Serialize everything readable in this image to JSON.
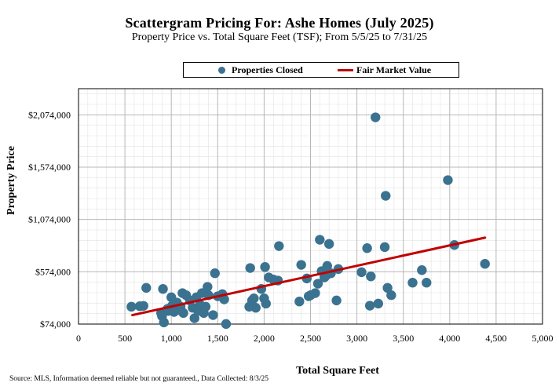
{
  "chart_data": {
    "type": "scatter",
    "title": "Scattergram Pricing For: Ashe Homes (July 2025)",
    "subtitle": "Property Price vs. Total Square Feet (TSF); From 5/5/25 to 7/31/25",
    "xlabel": "Total Square Feet",
    "ylabel": "Property Price",
    "xlim": [
      0,
      5000
    ],
    "ylim": [
      74000,
      2324000
    ],
    "x_ticks": [
      0,
      500,
      1000,
      1500,
      2000,
      2500,
      3000,
      3500,
      4000,
      4500,
      5000
    ],
    "x_tick_labels": [
      "0",
      "500",
      "1,000",
      "1,500",
      "2,000",
      "2,500",
      "3,000",
      "3,500",
      "4,000",
      "4,500",
      "5,000"
    ],
    "y_ticks": [
      74000,
      574000,
      1074000,
      1574000,
      2074000
    ],
    "y_tick_labels": [
      "$74,000",
      "$574,000",
      "$1,074,000",
      "$1,574,000",
      "$2,074,000"
    ],
    "grid": true,
    "legend": {
      "position": "top",
      "entries": [
        "Properties Closed",
        "Fair Market Value"
      ]
    },
    "series": [
      {
        "name": "Properties Closed",
        "kind": "scatter",
        "color": "#3a7290",
        "points": [
          [
            570,
            240000
          ],
          [
            660,
            245000
          ],
          [
            700,
            248000
          ],
          [
            730,
            420000
          ],
          [
            890,
            180000
          ],
          [
            900,
            150000
          ],
          [
            910,
            410000
          ],
          [
            920,
            90000
          ],
          [
            960,
            220000
          ],
          [
            970,
            200000
          ],
          [
            1000,
            330000
          ],
          [
            1010,
            250000
          ],
          [
            1030,
            190000
          ],
          [
            1060,
            280000
          ],
          [
            1080,
            210000
          ],
          [
            1100,
            240000
          ],
          [
            1120,
            370000
          ],
          [
            1130,
            180000
          ],
          [
            1160,
            350000
          ],
          [
            1200,
            300000
          ],
          [
            1230,
            230000
          ],
          [
            1250,
            130000
          ],
          [
            1270,
            330000
          ],
          [
            1290,
            200000
          ],
          [
            1310,
            260000
          ],
          [
            1330,
            370000
          ],
          [
            1350,
            180000
          ],
          [
            1370,
            240000
          ],
          [
            1390,
            430000
          ],
          [
            1400,
            350000
          ],
          [
            1450,
            160000
          ],
          [
            1470,
            560000
          ],
          [
            1500,
            340000
          ],
          [
            1550,
            360000
          ],
          [
            1570,
            310000
          ],
          [
            1590,
            75000
          ],
          [
            1840,
            240000
          ],
          [
            1850,
            610000
          ],
          [
            1870,
            300000
          ],
          [
            1890,
            320000
          ],
          [
            1910,
            230000
          ],
          [
            1970,
            410000
          ],
          [
            2000,
            320000
          ],
          [
            2010,
            620000
          ],
          [
            2020,
            270000
          ],
          [
            2050,
            520000
          ],
          [
            2100,
            500000
          ],
          [
            2150,
            490000
          ],
          [
            2160,
            820000
          ],
          [
            2380,
            290000
          ],
          [
            2400,
            640000
          ],
          [
            2460,
            510000
          ],
          [
            2480,
            340000
          ],
          [
            2500,
            350000
          ],
          [
            2550,
            370000
          ],
          [
            2580,
            460000
          ],
          [
            2600,
            880000
          ],
          [
            2620,
            580000
          ],
          [
            2650,
            520000
          ],
          [
            2670,
            540000
          ],
          [
            2680,
            630000
          ],
          [
            2700,
            840000
          ],
          [
            2720,
            560000
          ],
          [
            2780,
            300000
          ],
          [
            2800,
            600000
          ],
          [
            3050,
            570000
          ],
          [
            3110,
            800000
          ],
          [
            3140,
            250000
          ],
          [
            3150,
            530000
          ],
          [
            3200,
            2050000
          ],
          [
            3230,
            270000
          ],
          [
            3300,
            810000
          ],
          [
            3310,
            1300000
          ],
          [
            3330,
            420000
          ],
          [
            3370,
            350000
          ],
          [
            3600,
            470000
          ],
          [
            3700,
            590000
          ],
          [
            3750,
            470000
          ],
          [
            3980,
            1450000
          ],
          [
            4050,
            830000
          ],
          [
            4380,
            650000
          ]
        ]
      },
      {
        "name": "Fair Market Value",
        "kind": "line",
        "color": "#c00000",
        "points": [
          [
            580,
            160000
          ],
          [
            4380,
            900000
          ]
        ]
      }
    ],
    "source_note": "Source: MLS, Information deemed reliable but not guaranteed., Data Collected: 8/3/25"
  }
}
